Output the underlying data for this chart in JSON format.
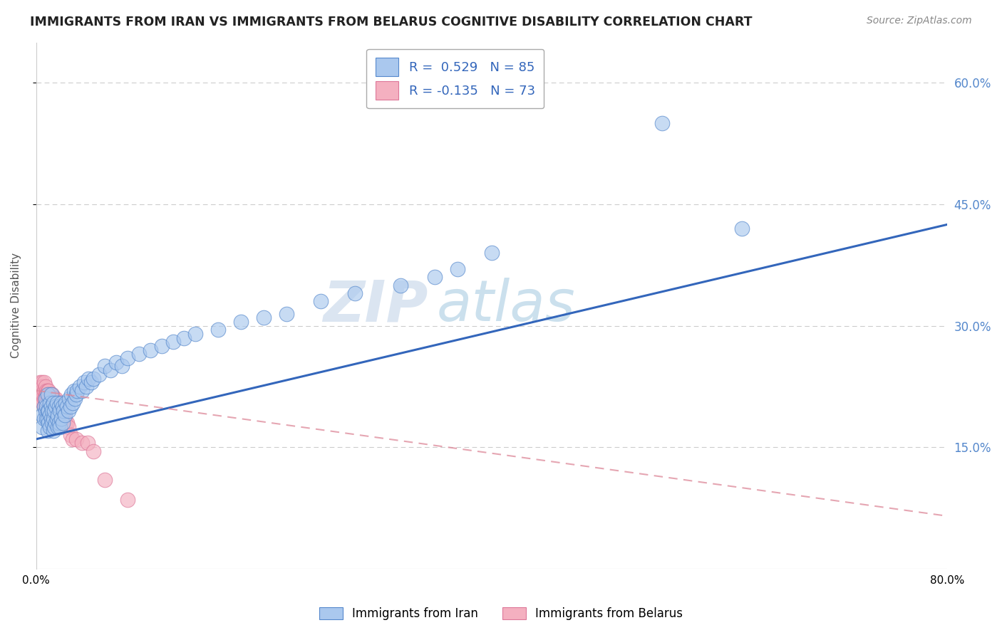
{
  "title": "IMMIGRANTS FROM IRAN VS IMMIGRANTS FROM BELARUS COGNITIVE DISABILITY CORRELATION CHART",
  "source": "Source: ZipAtlas.com",
  "ylabel": "Cognitive Disability",
  "legend_blue_r": "R =  0.529",
  "legend_blue_n": "N = 85",
  "legend_pink_r": "R = -0.135",
  "legend_pink_n": "N = 73",
  "legend_label_blue": "Immigrants from Iran",
  "legend_label_pink": "Immigrants from Belarus",
  "xlim": [
    0.0,
    0.8
  ],
  "ylim": [
    0.0,
    0.65
  ],
  "yticks": [
    0.15,
    0.3,
    0.45,
    0.6
  ],
  "ytick_labels": [
    "15.0%",
    "30.0%",
    "45.0%",
    "60.0%"
  ],
  "xtick_labels": [
    "0.0%",
    "80.0%"
  ],
  "blue_fill": "#aac8ee",
  "blue_edge": "#5588cc",
  "pink_fill": "#f4b0c0",
  "pink_edge": "#dd7799",
  "blue_line_color": "#3366bb",
  "pink_line_color": "#dd8899",
  "watermark_zip": "ZIP",
  "watermark_atlas": "atlas",
  "iran_x": [
    0.005,
    0.005,
    0.007,
    0.007,
    0.008,
    0.008,
    0.009,
    0.009,
    0.01,
    0.01,
    0.01,
    0.01,
    0.011,
    0.011,
    0.012,
    0.012,
    0.012,
    0.013,
    0.013,
    0.013,
    0.014,
    0.014,
    0.015,
    0.015,
    0.015,
    0.016,
    0.016,
    0.017,
    0.017,
    0.018,
    0.018,
    0.019,
    0.019,
    0.02,
    0.02,
    0.021,
    0.021,
    0.022,
    0.022,
    0.023,
    0.023,
    0.024,
    0.025,
    0.026,
    0.027,
    0.028,
    0.029,
    0.03,
    0.031,
    0.032,
    0.033,
    0.034,
    0.035,
    0.036,
    0.038,
    0.04,
    0.042,
    0.044,
    0.046,
    0.048,
    0.05,
    0.055,
    0.06,
    0.065,
    0.07,
    0.075,
    0.08,
    0.09,
    0.1,
    0.11,
    0.12,
    0.13,
    0.14,
    0.16,
    0.18,
    0.2,
    0.22,
    0.25,
    0.28,
    0.32,
    0.35,
    0.37,
    0.4,
    0.55,
    0.62
  ],
  "iran_y": [
    0.19,
    0.175,
    0.2,
    0.185,
    0.195,
    0.21,
    0.185,
    0.2,
    0.17,
    0.185,
    0.195,
    0.215,
    0.18,
    0.195,
    0.175,
    0.19,
    0.205,
    0.185,
    0.2,
    0.215,
    0.18,
    0.195,
    0.17,
    0.185,
    0.205,
    0.175,
    0.195,
    0.18,
    0.2,
    0.185,
    0.205,
    0.175,
    0.19,
    0.18,
    0.2,
    0.175,
    0.195,
    0.185,
    0.205,
    0.18,
    0.2,
    0.195,
    0.19,
    0.205,
    0.2,
    0.195,
    0.21,
    0.2,
    0.215,
    0.205,
    0.22,
    0.21,
    0.215,
    0.22,
    0.225,
    0.22,
    0.23,
    0.225,
    0.235,
    0.23,
    0.235,
    0.24,
    0.25,
    0.245,
    0.255,
    0.25,
    0.26,
    0.265,
    0.27,
    0.275,
    0.28,
    0.285,
    0.29,
    0.295,
    0.305,
    0.31,
    0.315,
    0.33,
    0.34,
    0.35,
    0.36,
    0.37,
    0.39,
    0.55,
    0.42
  ],
  "belarus_x": [
    0.003,
    0.004,
    0.004,
    0.005,
    0.005,
    0.005,
    0.006,
    0.006,
    0.006,
    0.007,
    0.007,
    0.007,
    0.007,
    0.008,
    0.008,
    0.008,
    0.008,
    0.009,
    0.009,
    0.009,
    0.009,
    0.01,
    0.01,
    0.01,
    0.01,
    0.01,
    0.011,
    0.011,
    0.011,
    0.011,
    0.012,
    0.012,
    0.012,
    0.012,
    0.013,
    0.013,
    0.013,
    0.014,
    0.014,
    0.014,
    0.014,
    0.015,
    0.015,
    0.015,
    0.016,
    0.016,
    0.016,
    0.017,
    0.017,
    0.017,
    0.018,
    0.018,
    0.019,
    0.019,
    0.02,
    0.02,
    0.021,
    0.021,
    0.022,
    0.023,
    0.024,
    0.025,
    0.026,
    0.027,
    0.028,
    0.03,
    0.032,
    0.035,
    0.04,
    0.045,
    0.05,
    0.06,
    0.08
  ],
  "belarus_y": [
    0.23,
    0.225,
    0.215,
    0.23,
    0.22,
    0.21,
    0.225,
    0.215,
    0.205,
    0.22,
    0.21,
    0.2,
    0.23,
    0.215,
    0.205,
    0.225,
    0.21,
    0.22,
    0.2,
    0.215,
    0.205,
    0.21,
    0.2,
    0.22,
    0.205,
    0.215,
    0.21,
    0.2,
    0.22,
    0.205,
    0.195,
    0.21,
    0.205,
    0.215,
    0.2,
    0.195,
    0.21,
    0.205,
    0.195,
    0.215,
    0.2,
    0.205,
    0.195,
    0.21,
    0.2,
    0.21,
    0.195,
    0.2,
    0.21,
    0.195,
    0.195,
    0.205,
    0.195,
    0.205,
    0.195,
    0.205,
    0.195,
    0.2,
    0.195,
    0.185,
    0.19,
    0.185,
    0.18,
    0.18,
    0.175,
    0.165,
    0.16,
    0.16,
    0.155,
    0.155,
    0.145,
    0.11,
    0.085
  ],
  "blue_trend_x": [
    0.0,
    0.8
  ],
  "blue_trend_y": [
    0.16,
    0.425
  ],
  "pink_trend_x": [
    0.0,
    0.8
  ],
  "pink_trend_y": [
    0.22,
    0.065
  ]
}
